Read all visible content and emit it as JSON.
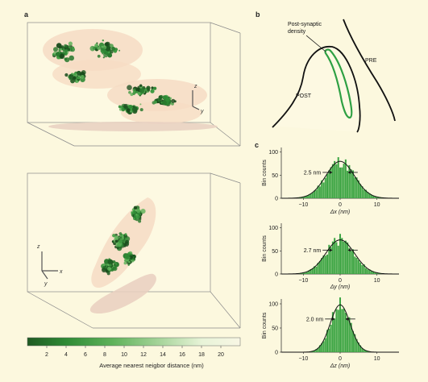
{
  "panels": {
    "a": "a",
    "b": "b",
    "c": "c"
  },
  "panel_a": {
    "axis_z": "z",
    "axis_y": "y",
    "axis_x": "x",
    "colorbar": {
      "ticks": [
        "2",
        "4",
        "6",
        "8",
        "10",
        "12",
        "14",
        "16",
        "18",
        "20"
      ],
      "label": "Average nearest neigbor distance (nm)",
      "colors": [
        "#1f5a22",
        "#2f8a35",
        "#5fb25a",
        "#a6d49a",
        "#e8f4d8",
        "#f8f6e4"
      ]
    }
  },
  "panel_b": {
    "psd_label_line1": "Post-synaptic",
    "psd_label_line2": "density",
    "post": "POST",
    "pre": "PRE"
  },
  "chart_data": [
    {
      "type": "bar",
      "title": "",
      "xlabel": "Δx (nm)",
      "ylabel": "Bin counts",
      "x_ticks": [
        "−10",
        "0",
        "10"
      ],
      "y_ticks": [
        "0",
        "50",
        "100"
      ],
      "xlim": [
        -16,
        16
      ],
      "ylim": [
        0,
        110
      ],
      "annotation": "2.5 nm",
      "fit": {
        "center": 0,
        "sigma": 3.9,
        "amplitude": 80
      }
    },
    {
      "type": "bar",
      "title": "",
      "xlabel": "Δy (nm)",
      "ylabel": "Bin counts",
      "x_ticks": [
        "−10",
        "0",
        "10"
      ],
      "y_ticks": [
        "0",
        "50",
        "100"
      ],
      "xlim": [
        -16,
        16
      ],
      "ylim": [
        0,
        110
      ],
      "annotation": "2.7 nm",
      "fit": {
        "center": 0,
        "sigma": 3.9,
        "amplitude": 74
      }
    },
    {
      "type": "bar",
      "title": "",
      "xlabel": "Δz (nm)",
      "ylabel": "Bin counts",
      "x_ticks": [
        "−10",
        "0",
        "10"
      ],
      "y_ticks": [
        "0",
        "50",
        "100"
      ],
      "xlim": [
        -16,
        16
      ],
      "ylim": [
        0,
        110
      ],
      "annotation": "2.0 nm",
      "fit": {
        "center": 0,
        "sigma": 2.7,
        "amplitude": 98
      }
    }
  ]
}
